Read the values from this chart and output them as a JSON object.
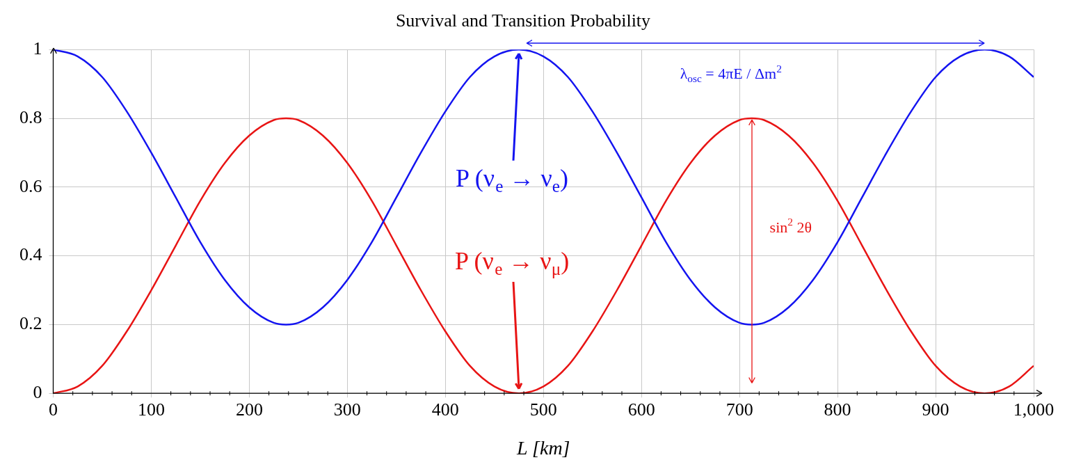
{
  "chart_data": {
    "type": "line",
    "title": "Survival and Transition Probability",
    "xlabel": "L [km]",
    "x": [
      0,
      25,
      50,
      75,
      100,
      125,
      150,
      175,
      200,
      225,
      237.5,
      250,
      275,
      300,
      325,
      350,
      375,
      400,
      425,
      450,
      475,
      500,
      525,
      550,
      575,
      600,
      625,
      650,
      675,
      700,
      712.5,
      725,
      750,
      775,
      800,
      825,
      850,
      875,
      900,
      925,
      950,
      975,
      1000
    ],
    "series": [
      {
        "name": "P (ν$_{e}$ → ν$_{e}$)",
        "color": "#1414f0",
        "values": [
          1,
          0.98,
          0.92,
          0.82,
          0.7,
          0.57,
          0.44,
          0.33,
          0.25,
          0.205,
          0.2,
          0.205,
          0.25,
          0.33,
          0.44,
          0.57,
          0.7,
          0.82,
          0.92,
          0.98,
          1,
          0.98,
          0.92,
          0.82,
          0.7,
          0.57,
          0.44,
          0.33,
          0.25,
          0.205,
          0.2,
          0.205,
          0.25,
          0.33,
          0.44,
          0.57,
          0.7,
          0.82,
          0.92,
          0.98,
          1,
          0.98,
          0.92
        ]
      },
      {
        "name": "P (ν$_{e}$ → ν$_{μ}$)",
        "color": "#e81414",
        "values": [
          0,
          0.02,
          0.08,
          0.18,
          0.3,
          0.43,
          0.56,
          0.67,
          0.75,
          0.795,
          0.8,
          0.795,
          0.75,
          0.67,
          0.56,
          0.43,
          0.3,
          0.18,
          0.08,
          0.02,
          0,
          0.02,
          0.08,
          0.18,
          0.3,
          0.43,
          0.56,
          0.67,
          0.75,
          0.795,
          0.8,
          0.795,
          0.75,
          0.67,
          0.56,
          0.43,
          0.3,
          0.18,
          0.08,
          0.02,
          0,
          0.02,
          0.08
        ]
      }
    ],
    "annotations": [
      "λ$_{osc}$ = 4πE / Δm$^{2}$",
      "sin$^{2}$ 2θ"
    ],
    "xlim": [
      0,
      1000
    ],
    "ylim": [
      0,
      1
    ],
    "xticks": [
      0,
      100,
      200,
      300,
      400,
      500,
      600,
      700,
      800,
      900,
      {
        "value": 1000,
        "label": "1,000"
      }
    ],
    "yticks": [
      0,
      0.2,
      0.4,
      0.6,
      0.8,
      1
    ],
    "grid": true,
    "legend": false,
    "marker": "none",
    "line_style": "solid"
  }
}
